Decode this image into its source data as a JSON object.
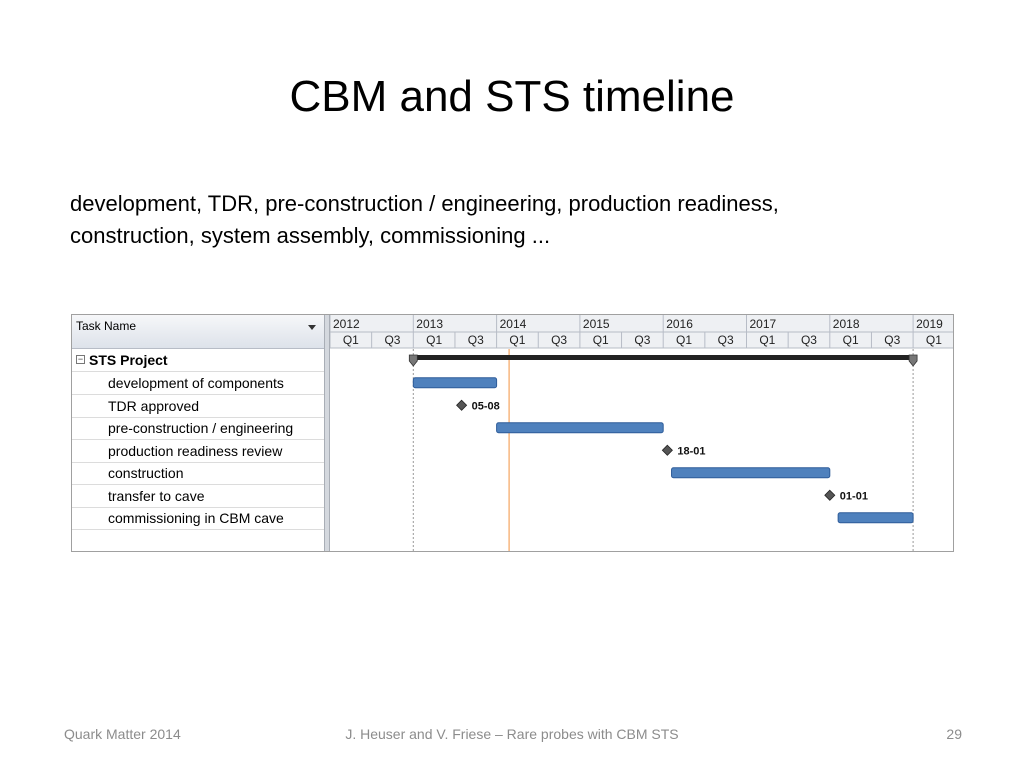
{
  "slide": {
    "title": "CBM and STS timeline",
    "body_lines": [
      "development, TDR, pre-construction / engineering, production readiness,",
      "construction, system assembly, commissioning ..."
    ],
    "footer_left": "Quark Matter 2014",
    "footer_center": "J. Heuser and V. Friese – Rare probes with CBM STS",
    "footer_right": "29"
  },
  "gantt": {
    "task_header": "Task Name",
    "parent_task": "STS Project",
    "tasks": [
      {
        "name": "development of components",
        "kind": "bar",
        "start": 2013.0,
        "end": 2014.0
      },
      {
        "name": "TDR approved",
        "kind": "milestone",
        "at": 2013.58,
        "label": "05-08"
      },
      {
        "name": "pre-construction / engineering",
        "kind": "bar",
        "start": 2014.0,
        "end": 2016.0
      },
      {
        "name": "production readiness review",
        "kind": "milestone",
        "at": 2016.05,
        "label": "18-01"
      },
      {
        "name": "construction",
        "kind": "bar",
        "start": 2016.1,
        "end": 2018.0
      },
      {
        "name": "transfer to cave",
        "kind": "milestone",
        "at": 2018.0,
        "label": "01-01"
      },
      {
        "name": "commissioning in CBM cave",
        "kind": "bar",
        "start": 2018.1,
        "end": 2019.0
      }
    ],
    "summary": {
      "start": 2013.0,
      "end": 2019.0
    },
    "years": [
      "2012",
      "2013",
      "2014",
      "2015",
      "2016",
      "2017",
      "2018",
      "2019"
    ],
    "quarters": [
      "Q1",
      "Q3",
      "Q1",
      "Q3",
      "Q1",
      "Q3",
      "Q1",
      "Q3",
      "Q1",
      "Q3",
      "Q1",
      "Q3",
      "Q1",
      "Q3",
      "Q1"
    ],
    "today_line": 2014.15,
    "timeline_start": 2012.0,
    "colors": {
      "bar": "#4f81bd",
      "bar_dark": "#2e5c99",
      "summary": "#222222",
      "today": "#f4a460",
      "milestone": "#555555",
      "grid": "#c8c8c8"
    }
  }
}
